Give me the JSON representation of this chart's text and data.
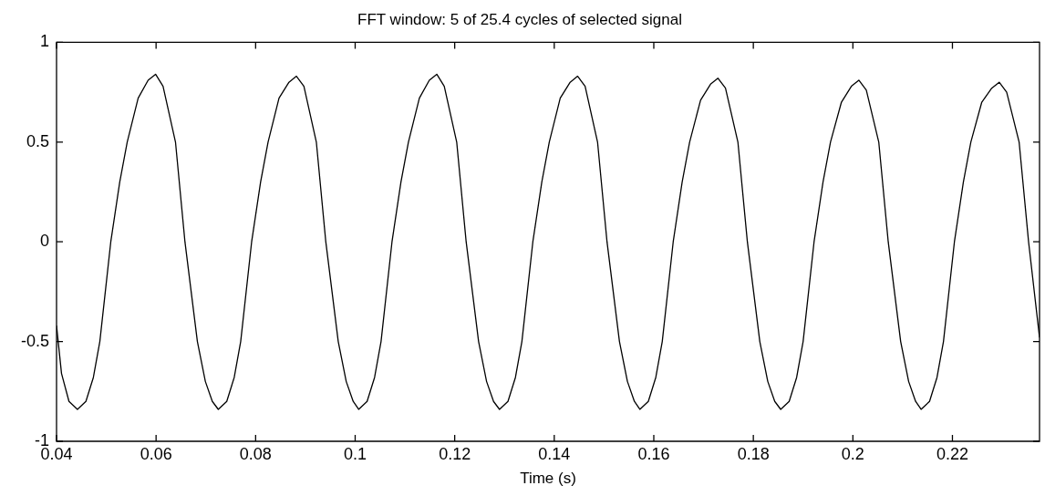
{
  "chart_data": {
    "type": "line",
    "title": "FFT window: 5 of 25.4 cycles of selected signal",
    "xlabel": "Time (s)",
    "xlim": [
      0.04,
      0.2375
    ],
    "xticks": [
      0.04,
      0.06,
      0.08,
      0.1,
      0.12,
      0.14,
      0.16,
      0.18,
      0.2,
      0.22
    ],
    "ylim": [
      -1,
      1
    ],
    "yticks": [
      -1,
      -0.5,
      0,
      0.5,
      1
    ],
    "marker": "none",
    "line_style": "solid",
    "series": [
      {
        "color": "#000000",
        "x": [
          0.04,
          0.041,
          0.0425,
          0.0442,
          0.0459,
          0.0474,
          0.0487,
          0.0509,
          0.0527,
          0.0542,
          0.0564,
          0.0584,
          0.0599,
          0.0614,
          0.0639,
          0.0658,
          0.0683,
          0.0699,
          0.0713,
          0.0725,
          0.0742,
          0.0757,
          0.077,
          0.0792,
          0.081,
          0.0825,
          0.0847,
          0.0867,
          0.0882,
          0.0897,
          0.0922,
          0.0941,
          0.0966,
          0.0982,
          0.0996,
          0.1007,
          0.1024,
          0.1039,
          0.1052,
          0.1074,
          0.1092,
          0.1107,
          0.1129,
          0.1149,
          0.1164,
          0.1179,
          0.1204,
          0.1223,
          0.1248,
          0.1264,
          0.1278,
          0.129,
          0.1307,
          0.1322,
          0.1335,
          0.1357,
          0.1375,
          0.139,
          0.1412,
          0.1432,
          0.1447,
          0.1462,
          0.1487,
          0.1506,
          0.1531,
          0.1547,
          0.1561,
          0.1572,
          0.1589,
          0.1604,
          0.1617,
          0.1639,
          0.1657,
          0.1672,
          0.1694,
          0.1714,
          0.1729,
          0.1744,
          0.1769,
          0.1788,
          0.1813,
          0.1829,
          0.1843,
          0.1855,
          0.1872,
          0.1887,
          0.19,
          0.1922,
          0.194,
          0.1955,
          0.1977,
          0.1997,
          0.2012,
          0.2027,
          0.2052,
          0.2071,
          0.2096,
          0.2112,
          0.2126,
          0.2137,
          0.2154,
          0.2169,
          0.2182,
          0.2204,
          0.2222,
          0.2237,
          0.2259,
          0.2279,
          0.2294,
          0.2309,
          0.2334,
          0.2353,
          0.2375
        ],
        "values": [
          -0.42,
          -0.66,
          -0.8,
          -0.84,
          -0.8,
          -0.68,
          -0.5,
          0,
          0.3,
          0.5,
          0.72,
          0.81,
          0.84,
          0.78,
          0.5,
          0,
          -0.5,
          -0.7,
          -0.8,
          -0.84,
          -0.8,
          -0.68,
          -0.5,
          0,
          0.3,
          0.5,
          0.72,
          0.8,
          0.83,
          0.78,
          0.5,
          0,
          -0.5,
          -0.7,
          -0.8,
          -0.84,
          -0.8,
          -0.68,
          -0.5,
          0,
          0.3,
          0.5,
          0.72,
          0.81,
          0.84,
          0.78,
          0.5,
          0,
          -0.5,
          -0.7,
          -0.8,
          -0.84,
          -0.8,
          -0.68,
          -0.5,
          0,
          0.3,
          0.5,
          0.72,
          0.8,
          0.83,
          0.78,
          0.5,
          0,
          -0.5,
          -0.7,
          -0.8,
          -0.84,
          -0.8,
          -0.68,
          -0.5,
          0,
          0.3,
          0.5,
          0.71,
          0.79,
          0.82,
          0.77,
          0.5,
          0,
          -0.5,
          -0.7,
          -0.8,
          -0.84,
          -0.8,
          -0.68,
          -0.5,
          0,
          0.3,
          0.5,
          0.7,
          0.78,
          0.81,
          0.76,
          0.5,
          0,
          -0.5,
          -0.7,
          -0.8,
          -0.84,
          -0.8,
          -0.68,
          -0.5,
          0,
          0.3,
          0.5,
          0.7,
          0.77,
          0.8,
          0.75,
          0.5,
          0,
          -0.48
        ]
      }
    ]
  }
}
